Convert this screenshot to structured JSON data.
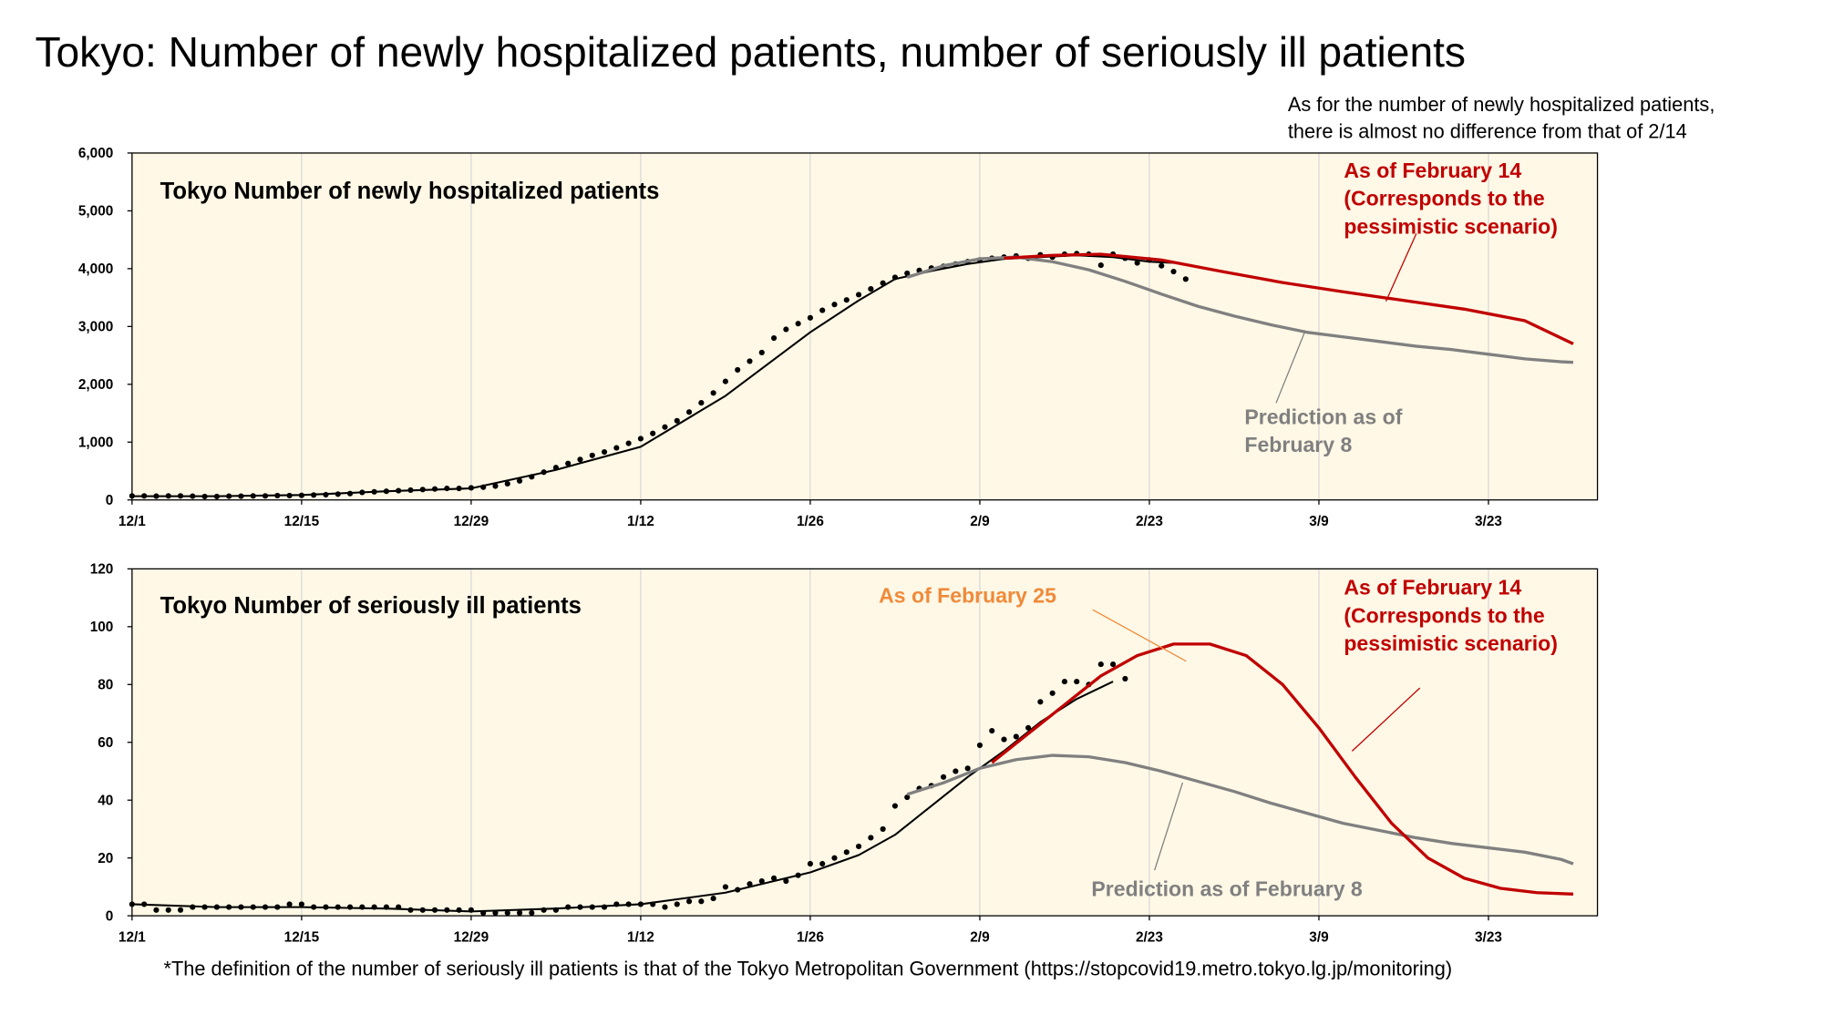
{
  "title": "Tokyo: Number of newly hospitalized patients, number of seriously ill patients",
  "note": [
    "As for the number of newly hospitalized patients,",
    "there is almost no difference from that of 2/14"
  ],
  "footnote": "*The definition of the number of seriously ill patients is that of the Tokyo Metropolitan Government (https://stopcovid19.metro.tokyo.lg.jp/monitoring)",
  "chart_data": [
    {
      "type": "line",
      "title": "Tokyo  Number of newly hospitalized patients",
      "background": "#fff8e6",
      "grid": "x",
      "xlim": [
        0,
        121
      ],
      "xticks": [
        {
          "value": 0,
          "label": "12/1"
        },
        {
          "value": 14,
          "label": "12/15"
        },
        {
          "value": 28,
          "label": "12/29"
        },
        {
          "value": 42,
          "label": "1/12"
        },
        {
          "value": 56,
          "label": "1/26"
        },
        {
          "value": 70,
          "label": "2/9"
        },
        {
          "value": 84,
          "label": "2/23"
        },
        {
          "value": 98,
          "label": "3/9"
        },
        {
          "value": 112,
          "label": "3/23"
        }
      ],
      "ylim": [
        0,
        6000
      ],
      "yticks": [
        0,
        {
          "value": 1000,
          "label": "1,000"
        },
        {
          "value": 2000,
          "label": "2,000"
        },
        {
          "value": 3000,
          "label": "3,000"
        },
        {
          "value": 4000,
          "label": "4,000"
        },
        {
          "value": 5000,
          "label": "5,000"
        },
        {
          "value": 6000,
          "label": "6,000"
        }
      ],
      "series": [
        {
          "style": "dots",
          "color": "#000000",
          "x": [
            0,
            1,
            2,
            3,
            4,
            5,
            6,
            7,
            8,
            9,
            10,
            11,
            12,
            13,
            14,
            15,
            16,
            17,
            18,
            19,
            20,
            21,
            22,
            23,
            24,
            25,
            26,
            27,
            28,
            29,
            30,
            31,
            32,
            33,
            34,
            35,
            36,
            37,
            38,
            39,
            40,
            41,
            42,
            43,
            44,
            45,
            46,
            47,
            48,
            49,
            50,
            51,
            52,
            53,
            54,
            55,
            56,
            57,
            58,
            59,
            60,
            61,
            62,
            63,
            64,
            65,
            66,
            67,
            68,
            69,
            70,
            71,
            72,
            73,
            74,
            75,
            76,
            77,
            78,
            79,
            80,
            81,
            82,
            83,
            84,
            85,
            86,
            87
          ],
          "values": [
            70,
            70,
            65,
            70,
            70,
            65,
            60,
            60,
            65,
            65,
            70,
            70,
            75,
            75,
            80,
            85,
            90,
            100,
            110,
            130,
            140,
            150,
            160,
            170,
            180,
            190,
            200,
            200,
            210,
            220,
            240,
            280,
            330,
            400,
            480,
            560,
            630,
            700,
            770,
            830,
            900,
            980,
            1060,
            1150,
            1260,
            1370,
            1520,
            1680,
            1850,
            2050,
            2250,
            2400,
            2550,
            2800,
            2950,
            3050,
            3150,
            3280,
            3380,
            3460,
            3550,
            3650,
            3750,
            3850,
            3920,
            3970,
            4010,
            4040,
            4080,
            4120,
            4150,
            4180,
            4200,
            4220,
            4180,
            4240,
            4200,
            4250,
            4260,
            4250,
            4060,
            4250,
            4180,
            4100,
            4150,
            4050,
            3950,
            3820
          ]
        },
        {
          "style": "line",
          "color": "#000000",
          "x": [
            0,
            7,
            14,
            21,
            28,
            35,
            42,
            49,
            56,
            60,
            63,
            66,
            69,
            72,
            75,
            78,
            81,
            84,
            86
          ],
          "values": [
            65,
            65,
            85,
            150,
            200,
            520,
            920,
            1800,
            2900,
            3450,
            3820,
            3960,
            4080,
            4170,
            4200,
            4230,
            4200,
            4120,
            4100
          ]
        },
        {
          "style": "line",
          "color": "#808080",
          "x": [
            64,
            67,
            70,
            73,
            76,
            79,
            82,
            85,
            88,
            91,
            94,
            97,
            100,
            103,
            106,
            109,
            112,
            115,
            118,
            119
          ],
          "values": [
            3850,
            4050,
            4170,
            4200,
            4120,
            3980,
            3780,
            3560,
            3350,
            3180,
            3030,
            2900,
            2820,
            2740,
            2660,
            2600,
            2520,
            2440,
            2390,
            2380
          ]
        },
        {
          "style": "line",
          "color": "#c00000",
          "x": [
            72,
            76,
            80,
            85,
            90,
            95,
            100,
            105,
            110,
            115,
            119
          ],
          "values": [
            4180,
            4230,
            4250,
            4150,
            3950,
            3760,
            3600,
            3450,
            3300,
            3100,
            2700
          ]
        }
      ],
      "annotations": [
        {
          "lines": [
            "As of February 14",
            "(Corresponds to the",
            "pessimistic scenario)"
          ],
          "color": "#c00000"
        },
        {
          "lines": [
            "Prediction as of",
            "February 8"
          ],
          "color": "#808080"
        }
      ]
    },
    {
      "type": "line",
      "title": "Tokyo  Number of seriously ill patients",
      "background": "#fff8e6",
      "grid": "x",
      "xlim": [
        0,
        121
      ],
      "xticks": [
        {
          "value": 0,
          "label": "12/1"
        },
        {
          "value": 14,
          "label": "12/15"
        },
        {
          "value": 28,
          "label": "12/29"
        },
        {
          "value": 42,
          "label": "1/12"
        },
        {
          "value": 56,
          "label": "1/26"
        },
        {
          "value": 70,
          "label": "2/9"
        },
        {
          "value": 84,
          "label": "2/23"
        },
        {
          "value": 98,
          "label": "3/9"
        },
        {
          "value": 112,
          "label": "3/23"
        }
      ],
      "ylim": [
        0,
        120
      ],
      "yticks": [
        0,
        20,
        40,
        60,
        80,
        100,
        120
      ],
      "series": [
        {
          "style": "dots",
          "color": "#000000",
          "x": [
            0,
            1,
            2,
            3,
            4,
            5,
            6,
            7,
            8,
            9,
            10,
            11,
            12,
            13,
            14,
            15,
            16,
            17,
            18,
            19,
            20,
            21,
            22,
            23,
            24,
            25,
            26,
            27,
            28,
            29,
            30,
            31,
            32,
            33,
            34,
            35,
            36,
            37,
            38,
            39,
            40,
            41,
            42,
            43,
            44,
            45,
            46,
            47,
            48,
            49,
            50,
            51,
            52,
            53,
            54,
            55,
            56,
            57,
            58,
            59,
            60,
            61,
            62,
            63,
            64,
            65,
            66,
            67,
            68,
            69,
            70,
            71,
            72,
            73,
            74,
            75,
            76,
            77,
            78,
            79,
            80,
            81,
            82
          ],
          "values": [
            4,
            4,
            2,
            2,
            2,
            3,
            3,
            3,
            3,
            3,
            3,
            3,
            3,
            4,
            4,
            3,
            3,
            3,
            3,
            3,
            3,
            3,
            3,
            2,
            2,
            2,
            2,
            2,
            2,
            1,
            1,
            1,
            1,
            1,
            2,
            2,
            3,
            3,
            3,
            3,
            4,
            4,
            4,
            4,
            3,
            4,
            5,
            5,
            6,
            10,
            9,
            11,
            12,
            13,
            12,
            14,
            18,
            18,
            20,
            22,
            24,
            27,
            30,
            38,
            41,
            44,
            45,
            48,
            50,
            51,
            59,
            64,
            61,
            62,
            65,
            74,
            77,
            81,
            81,
            80,
            87,
            87,
            82
          ]
        },
        {
          "style": "line",
          "color": "#000000",
          "x": [
            0,
            7,
            14,
            21,
            28,
            35,
            42,
            49,
            56,
            60,
            63,
            66,
            69,
            72,
            75,
            78,
            81
          ],
          "values": [
            4,
            3,
            3,
            2.5,
            1.5,
            2.5,
            4,
            8,
            15,
            21,
            28,
            38,
            48,
            57,
            67,
            75,
            81
          ]
        },
        {
          "style": "line",
          "color": "#808080",
          "x": [
            64,
            67,
            70,
            73,
            76,
            79,
            82,
            85,
            88,
            91,
            94,
            97,
            100,
            103,
            106,
            109,
            112,
            115,
            118,
            119
          ],
          "values": [
            42,
            46,
            51,
            54,
            55.5,
            55,
            53,
            50,
            46.5,
            43,
            39,
            35.5,
            32,
            29.5,
            27,
            25,
            23.5,
            22,
            19.5,
            18
          ]
        },
        {
          "style": "line",
          "color": "#c00000",
          "x": [
            71,
            74,
            77,
            80,
            83,
            86,
            89,
            92,
            95,
            98,
            101,
            104,
            107,
            110,
            113,
            116,
            119
          ],
          "values": [
            53,
            63,
            73,
            83,
            90,
            94,
            94,
            90,
            80,
            65,
            48,
            32,
            20,
            13,
            9.5,
            8,
            7.5
          ]
        }
      ],
      "annotations": [
        {
          "lines": [
            "As of February 25"
          ],
          "color": "#f08a3a"
        },
        {
          "lines": [
            "As of February 14",
            "(Corresponds to the",
            "pessimistic scenario)"
          ],
          "color": "#c00000"
        },
        {
          "lines": [
            "Prediction as of February 8"
          ],
          "color": "#808080"
        }
      ]
    }
  ]
}
